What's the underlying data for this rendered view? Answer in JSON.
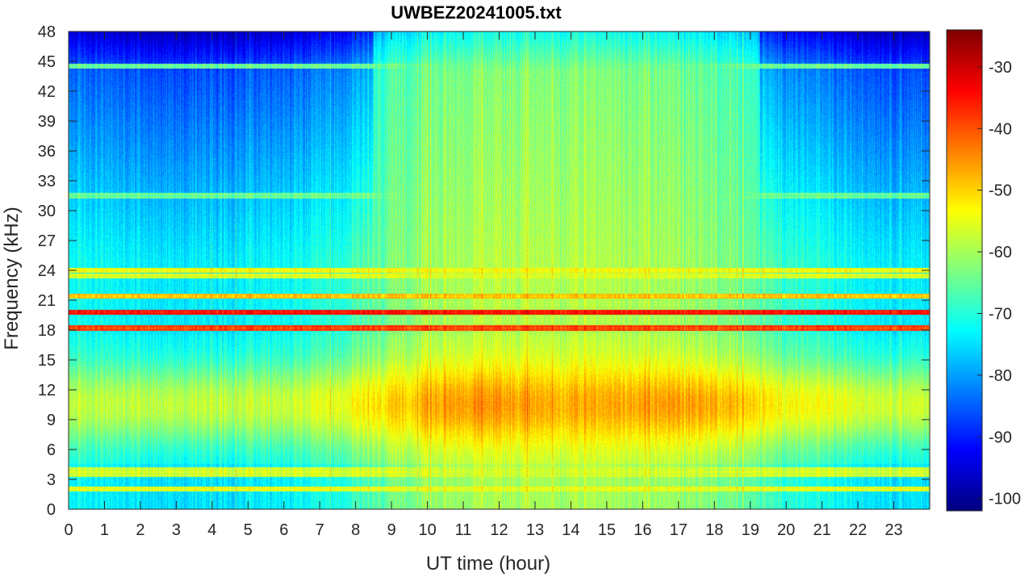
{
  "chart_data": {
    "type": "heatmap",
    "title": "UWBEZ20241005.txt",
    "xlabel": "UT time (hour)",
    "ylabel": "Frequency (kHz)",
    "xlim": [
      0,
      24
    ],
    "ylim": [
      0,
      48
    ],
    "x_ticks": [
      0,
      1,
      2,
      3,
      4,
      5,
      6,
      7,
      8,
      9,
      10,
      11,
      12,
      13,
      14,
      15,
      16,
      17,
      18,
      19,
      20,
      21,
      22,
      23
    ],
    "y_ticks": [
      0,
      3,
      6,
      9,
      12,
      15,
      18,
      21,
      24,
      27,
      30,
      33,
      36,
      39,
      42,
      45,
      48
    ],
    "colorbar": {
      "colormap": "jet",
      "clim": [
        -102,
        -24
      ],
      "ticks": [
        -100,
        -90,
        -80,
        -70,
        -60,
        -50,
        -40,
        -30
      ]
    },
    "background_level_by_hour": [
      -72,
      -73,
      -74,
      -74,
      -74,
      -73,
      -72,
      -70,
      -66,
      -62,
      -60,
      -59,
      -59,
      -59,
      -59,
      -60,
      -60,
      -61,
      -63,
      -67,
      -70,
      -72,
      -73,
      -74
    ],
    "lowfreq_enhancement_peak_by_hour": [
      -58,
      -58,
      -58,
      -58,
      -58,
      -58,
      -57,
      -55,
      -52,
      -49,
      -46,
      -45,
      -46,
      -47,
      -47,
      -47,
      -46,
      -46,
      -48,
      -52,
      -54,
      -55,
      -56,
      -57
    ],
    "narrowband_lines_khz": [
      {
        "freq": 19.8,
        "level": -36
      },
      {
        "freq": 18.2,
        "level": -40
      },
      {
        "freq": 21.4,
        "level": -50
      },
      {
        "freq": 24.0,
        "level": -55
      },
      {
        "freq": 23.4,
        "level": -57
      },
      {
        "freq": 44.5,
        "level": -66
      },
      {
        "freq": 31.5,
        "level": -66
      },
      {
        "freq": 4.0,
        "level": -58
      },
      {
        "freq": 3.5,
        "level": -58
      },
      {
        "freq": 2.0,
        "level": -56
      }
    ]
  }
}
